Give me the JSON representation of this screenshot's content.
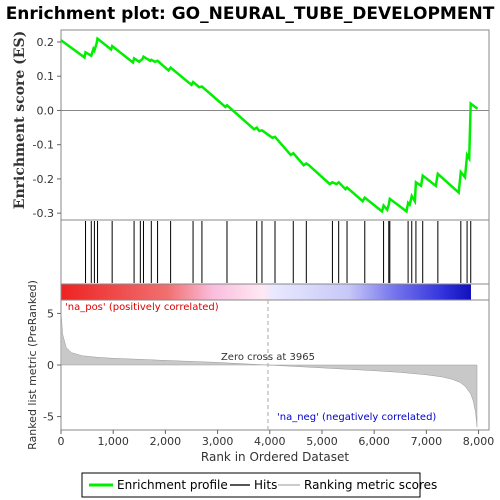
{
  "title": "Enrichment plot: GO_NEURAL_TUBE_DEVELOPMENT",
  "colors": {
    "enrichment": "#00ee00",
    "hits": "#000000",
    "metric_fill": "#c8c8c8",
    "pos_label": "#dd0000",
    "neg_label": "#0000cc",
    "zero_line": "#aaaaaa"
  },
  "chart_data": [
    {
      "type": "line",
      "name": "enrichment-score",
      "ylabel": "Enrichment score (ES)",
      "xlim": [
        0,
        8200
      ],
      "ylim": [
        -0.32,
        0.235
      ],
      "yticks": [
        -0.3,
        -0.2,
        -0.1,
        0.0,
        0.1,
        0.2
      ],
      "ytick_labels": [
        "-0.3",
        "-0.2",
        "-0.1",
        "0.0",
        "0.1",
        "0.2"
      ],
      "x": [
        0,
        450,
        470,
        580,
        620,
        640,
        680,
        700,
        960,
        980,
        1380,
        1400,
        1500,
        1520,
        1560,
        1580,
        1710,
        1730,
        1800,
        1850,
        2060,
        2100,
        2500,
        2530,
        2650,
        2700,
        3150,
        3180,
        3700,
        3750,
        3800,
        3850,
        4050,
        4100,
        4400,
        4450,
        4650,
        4700,
        4750,
        5150,
        5200,
        5280,
        5320,
        5450,
        5480,
        5780,
        5820,
        6150,
        6180,
        6250,
        6280,
        6300,
        6620,
        6650,
        6680,
        6720,
        6780,
        6800,
        6900,
        6930,
        7180,
        7220,
        7620,
        7660,
        7740,
        7780,
        7820,
        7850,
        7980
      ],
      "y": [
        0.205,
        0.155,
        0.17,
        0.16,
        0.18,
        0.175,
        0.195,
        0.21,
        0.178,
        0.188,
        0.14,
        0.152,
        0.142,
        0.145,
        0.15,
        0.157,
        0.145,
        0.148,
        0.142,
        0.145,
        0.117,
        0.125,
        0.075,
        0.083,
        0.068,
        0.07,
        0.01,
        0.015,
        -0.055,
        -0.05,
        -0.06,
        -0.058,
        -0.08,
        -0.077,
        -0.13,
        -0.125,
        -0.16,
        -0.155,
        -0.16,
        -0.215,
        -0.21,
        -0.215,
        -0.21,
        -0.23,
        -0.225,
        -0.265,
        -0.255,
        -0.295,
        -0.278,
        -0.29,
        -0.275,
        -0.258,
        -0.295,
        -0.27,
        -0.275,
        -0.25,
        -0.265,
        -0.21,
        -0.22,
        -0.19,
        -0.22,
        -0.185,
        -0.24,
        -0.18,
        -0.195,
        -0.13,
        -0.14,
        0.02,
        0.005
      ]
    },
    {
      "type": "bar",
      "name": "hits",
      "label": "Hits",
      "x": [
        470,
        580,
        640,
        700,
        980,
        1400,
        1520,
        1580,
        1730,
        1850,
        2100,
        2530,
        2700,
        3180,
        3750,
        3850,
        4100,
        4450,
        4700,
        5200,
        5320,
        5480,
        5820,
        6180,
        6280,
        6300,
        6650,
        6720,
        6800,
        6930,
        7220,
        7660,
        7780,
        7850
      ]
    },
    {
      "type": "area",
      "name": "ranked-metric",
      "ylabel": "Ranked list metric (PreRanked)",
      "xlabel": "Rank in Ordered Dataset",
      "xlim": [
        0,
        8200
      ],
      "ylim": [
        -6.3,
        6.3
      ],
      "yticks": [
        -5,
        0,
        5
      ],
      "ytick_labels": [
        "-5",
        "0",
        "5"
      ],
      "xticks": [
        0,
        1000,
        2000,
        3000,
        4000,
        5000,
        6000,
        7000,
        8000
      ],
      "xtick_labels": [
        "0",
        "1,000",
        "2,000",
        "3,000",
        "4,000",
        "5,000",
        "6,000",
        "7,000",
        "8,000"
      ],
      "x": [
        0,
        30,
        100,
        200,
        400,
        700,
        1000,
        1500,
        2000,
        2500,
        3000,
        3500,
        3965,
        4500,
        5000,
        5500,
        6000,
        6500,
        7000,
        7300,
        7500,
        7650,
        7750,
        7850,
        7900,
        7940,
        7960,
        7970
      ],
      "values": [
        5.2,
        3.0,
        1.7,
        1.2,
        0.9,
        0.75,
        0.65,
        0.55,
        0.45,
        0.35,
        0.25,
        0.12,
        0.0,
        -0.15,
        -0.28,
        -0.42,
        -0.55,
        -0.72,
        -0.95,
        -1.15,
        -1.4,
        -1.7,
        -2.1,
        -2.8,
        -3.5,
        -4.5,
        -5.5,
        -6.0
      ],
      "zero_cross_label": "Zero cross at 3965",
      "zero_cross": 3965,
      "pos_label": "'na_pos' (positively correlated)",
      "neg_label": "'na_neg' (negatively correlated)"
    }
  ],
  "legend": {
    "items": [
      {
        "label": "Enrichment profile",
        "color": "#00ee00"
      },
      {
        "label": "Hits",
        "color": "#555555"
      },
      {
        "label": "Ranking metric scores",
        "color": "#cccccc"
      }
    ]
  }
}
